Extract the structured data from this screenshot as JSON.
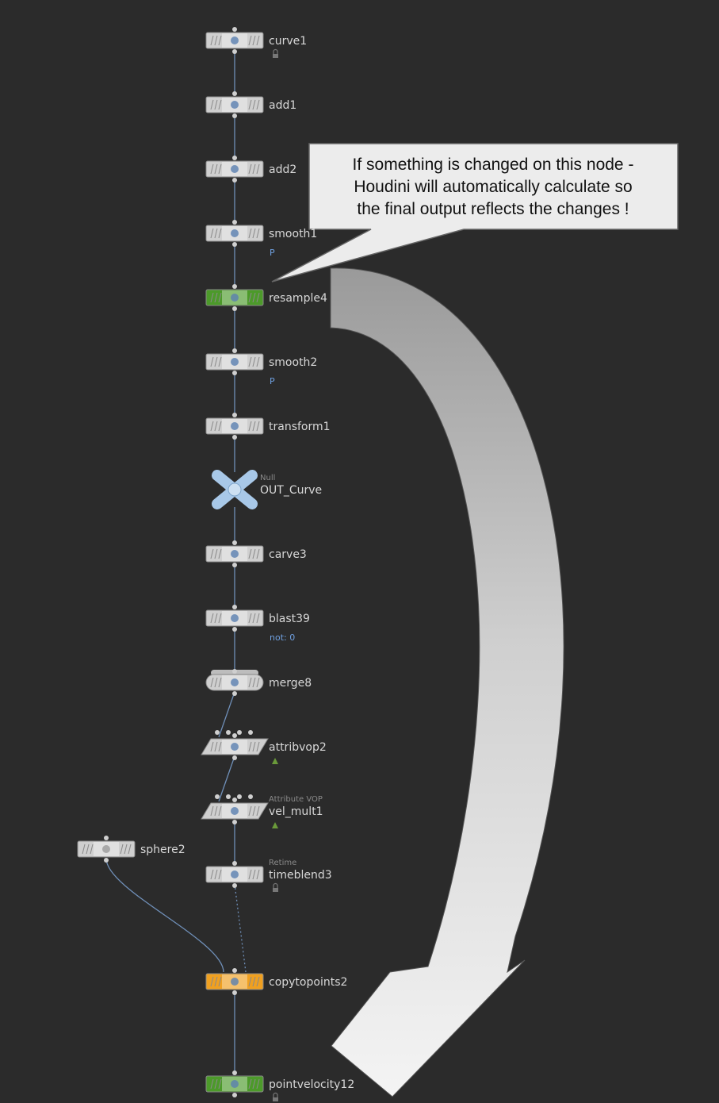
{
  "callout": {
    "lines": [
      "If something is changed on this node -",
      "Houdini will automatically calculate so",
      "the final output reflects the changes !"
    ]
  },
  "nodes": [
    {
      "id": "curve1",
      "label": "curve1",
      "type_label": "",
      "flag": "",
      "color": "#cfcfcf",
      "icon": "curve-icon",
      "badge": "lock"
    },
    {
      "id": "add1",
      "label": "add1",
      "type_label": "",
      "flag": "",
      "color": "#cfcfcf",
      "icon": "add-icon",
      "badge": ""
    },
    {
      "id": "add2",
      "label": "add2",
      "type_label": "",
      "flag": "",
      "color": "#cfcfcf",
      "icon": "add-icon",
      "badge": ""
    },
    {
      "id": "smooth1",
      "label": "smooth1",
      "type_label": "",
      "flag": "P",
      "color": "#cfcfcf",
      "icon": "smooth-icon",
      "badge": ""
    },
    {
      "id": "resample4",
      "label": "resample4",
      "type_label": "",
      "flag": "",
      "color": "#4c9a2a",
      "icon": "resample-icon",
      "badge": ""
    },
    {
      "id": "smooth2",
      "label": "smooth2",
      "type_label": "",
      "flag": "P",
      "color": "#cfcfcf",
      "icon": "smooth-icon",
      "badge": ""
    },
    {
      "id": "transform1",
      "label": "transform1",
      "type_label": "",
      "flag": "",
      "color": "#cfcfcf",
      "icon": "transform-icon",
      "badge": ""
    },
    {
      "id": "out_curve",
      "label": "OUT_Curve",
      "type_label": "Null",
      "flag": "",
      "color": "#a8c8e8",
      "icon": "null-icon",
      "badge": ""
    },
    {
      "id": "carve3",
      "label": "carve3",
      "type_label": "",
      "flag": "",
      "color": "#cfcfcf",
      "icon": "carve-icon",
      "badge": ""
    },
    {
      "id": "blast39",
      "label": "blast39",
      "type_label": "",
      "flag": "not: 0",
      "color": "#cfcfcf",
      "icon": "blast-icon",
      "badge": ""
    },
    {
      "id": "merge8",
      "label": "merge8",
      "type_label": "",
      "flag": "",
      "color": "#cfcfcf",
      "icon": "merge-icon",
      "badge": ""
    },
    {
      "id": "attribvop2",
      "label": "attribvop2",
      "type_label": "",
      "flag": "",
      "color": "#cfcfcf",
      "icon": "vop-icon",
      "badge": "vop"
    },
    {
      "id": "vel_mult1",
      "label": "vel_mult1",
      "type_label": "Attribute VOP",
      "flag": "",
      "color": "#cfcfcf",
      "icon": "vop-icon",
      "badge": "vop"
    },
    {
      "id": "sphere2",
      "label": "sphere2",
      "type_label": "",
      "flag": "",
      "color": "#cfcfcf",
      "icon": "sphere-icon",
      "badge": ""
    },
    {
      "id": "timeblend3",
      "label": "timeblend3",
      "type_label": "Retime",
      "flag": "",
      "color": "#cfcfcf",
      "icon": "timeblend-icon",
      "badge": "lock"
    },
    {
      "id": "copytopoints2",
      "label": "copytopoints2",
      "type_label": "",
      "flag": "",
      "color": "#f0a020",
      "icon": "copy-icon",
      "badge": ""
    },
    {
      "id": "pointvelocity12",
      "label": "pointvelocity12",
      "type_label": "",
      "flag": "",
      "color": "#4c9a2a",
      "icon": "velocity-icon",
      "badge": "lock"
    }
  ],
  "colors": {
    "background": "#2b2b2b",
    "wire": "#6f8fb8",
    "callout_fill": "#ececec",
    "arrow_fill_light": "#f2f2f2",
    "arrow_fill_dark": "#9a9a9a"
  }
}
